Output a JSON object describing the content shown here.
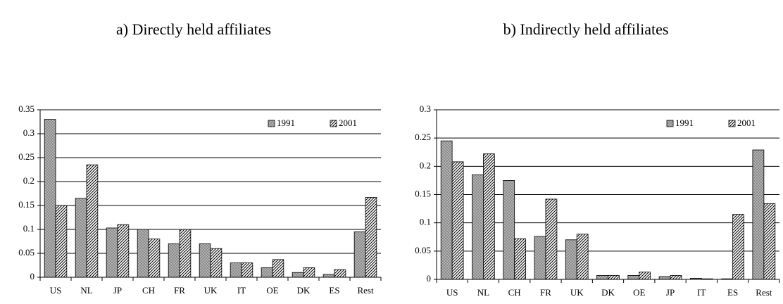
{
  "chart_data": [
    {
      "type": "bar",
      "title": "a) Directly held affiliates",
      "categories": [
        "US",
        "NL",
        "JP",
        "CH",
        "FR",
        "UK",
        "IT",
        "OE",
        "DK",
        "ES",
        "Rest"
      ],
      "series": [
        {
          "name": "1991",
          "color": "#8c8c8c",
          "pattern": "dots",
          "values": [
            0.33,
            0.165,
            0.103,
            0.1,
            0.07,
            0.07,
            0.03,
            0.02,
            0.01,
            0.006,
            0.095
          ]
        },
        {
          "name": "2001",
          "color": "#ffffff",
          "pattern": "hatch",
          "values": [
            0.15,
            0.235,
            0.11,
            0.08,
            0.1,
            0.06,
            0.03,
            0.037,
            0.02,
            0.016,
            0.167
          ]
        }
      ],
      "ylim": [
        0,
        0.35
      ],
      "yticks": [
        0,
        0.05,
        0.1,
        0.15,
        0.2,
        0.25,
        0.3,
        0.35
      ],
      "grid": true,
      "legend": "top-right"
    },
    {
      "type": "bar",
      "title": "b) Indirectly held affiliates",
      "categories": [
        "US",
        "NL",
        "CH",
        "FR",
        "UK",
        "DK",
        "OE",
        "JP",
        "IT",
        "ES",
        "Rest"
      ],
      "series": [
        {
          "name": "1991",
          "color": "#8c8c8c",
          "pattern": "dots",
          "values": [
            0.245,
            0.185,
            0.175,
            0.076,
            0.07,
            0.007,
            0.007,
            0.005,
            0.002,
            0.001,
            0.229
          ]
        },
        {
          "name": "2001",
          "color": "#ffffff",
          "pattern": "hatch",
          "values": [
            0.208,
            0.222,
            0.072,
            0.142,
            0.08,
            0.007,
            0.013,
            0.007,
            0.001,
            0.115,
            0.134
          ]
        }
      ],
      "ylim": [
        0,
        0.3
      ],
      "yticks": [
        0,
        0.05,
        0.1,
        0.15,
        0.2,
        0.25,
        0.3
      ],
      "grid": true,
      "legend": "top-right"
    }
  ]
}
